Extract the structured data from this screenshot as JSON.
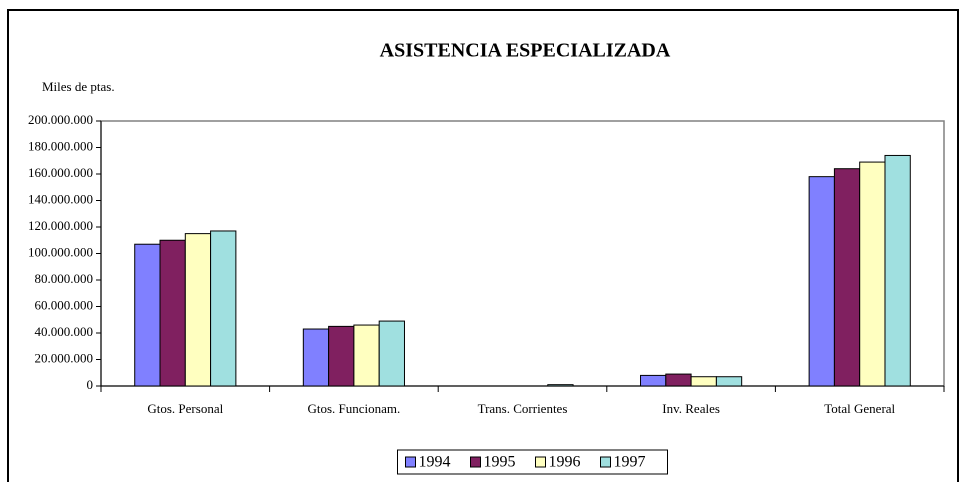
{
  "chart_data": {
    "type": "bar",
    "title": "ASISTENCIA ESPECIALIZADA",
    "y_axis_label": "Miles de ptas.",
    "categories": [
      "Gtos. Personal",
      "Gtos. Funcionam.",
      "Trans. Corrientes",
      "Inv. Reales",
      "Total General"
    ],
    "series": [
      {
        "name": "1994",
        "color": "#8080ff",
        "values": [
          107000000,
          43000000,
          0,
          8000000,
          158000000
        ]
      },
      {
        "name": "1995",
        "color": "#802060",
        "values": [
          110000000,
          45000000,
          0,
          9000000,
          164000000
        ]
      },
      {
        "name": "1996",
        "color": "#ffffc0",
        "values": [
          115000000,
          46000000,
          0,
          7000000,
          169000000
        ]
      },
      {
        "name": "1997",
        "color": "#a0e0e0",
        "values": [
          117000000,
          49000000,
          1000000,
          7000000,
          174000000
        ]
      }
    ],
    "ylim": [
      0,
      200000000
    ],
    "yticks": [
      0,
      {
        "value": 20000000,
        "label": "20.000.000"
      },
      {
        "value": 40000000,
        "label": "40.000.000"
      },
      {
        "value": 60000000,
        "label": "60.000.000"
      },
      {
        "value": 80000000,
        "label": "80.000.000"
      },
      {
        "value": 100000000,
        "label": "100.000.000"
      },
      {
        "value": 120000000,
        "label": "120.000.000"
      },
      {
        "value": 140000000,
        "label": "140.000.000"
      },
      {
        "value": 160000000,
        "label": "160.000.000"
      },
      {
        "value": 180000000,
        "label": "180.000.000"
      },
      {
        "value": 200000000,
        "label": "200.000.000"
      }
    ],
    "grid": false,
    "legend": "bottom"
  }
}
